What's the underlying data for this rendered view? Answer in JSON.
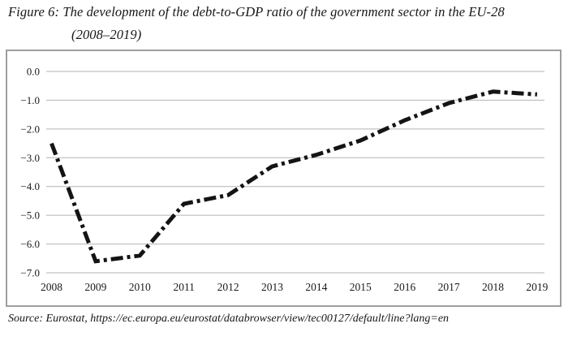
{
  "figure": {
    "label": "Figure 6:",
    "title": "The development of the debt-to-GDP ratio of the government sector in the EU-28",
    "title_line2": "(2008–2019)"
  },
  "source": "Source: Eurostat, https://ec.europa.eu/eurostat/databrowser/view/tec00127/default/line?lang=en",
  "chart_data": {
    "type": "line",
    "title": "Figure 6: The development of the debt-to-GDP ratio of the government sector in the EU-28 (2008–2019)",
    "categories": [
      "2008",
      "2009",
      "2010",
      "2011",
      "2012",
      "2013",
      "2014",
      "2015",
      "2016",
      "2017",
      "2018",
      "2019"
    ],
    "values": [
      -2.5,
      -6.6,
      -6.4,
      -4.6,
      -4.3,
      -3.3,
      -2.9,
      -2.4,
      -1.7,
      -1.1,
      -0.7,
      -0.8
    ],
    "yticks": [
      "0.0",
      "−1.0",
      "−2.0",
      "−3.0",
      "−4.0",
      "−5.0",
      "−6.0",
      "−7.0"
    ],
    "ylim": [
      -7.0,
      0.0
    ],
    "xlabel": "",
    "ylabel": "",
    "grid": "horizontal",
    "legend": "none",
    "line_style": "dash-dot",
    "line_color": "#141414",
    "grid_color": "#b3b3b3",
    "border_color": "#9e9e9e",
    "text_color": "#1a1a1a"
  }
}
